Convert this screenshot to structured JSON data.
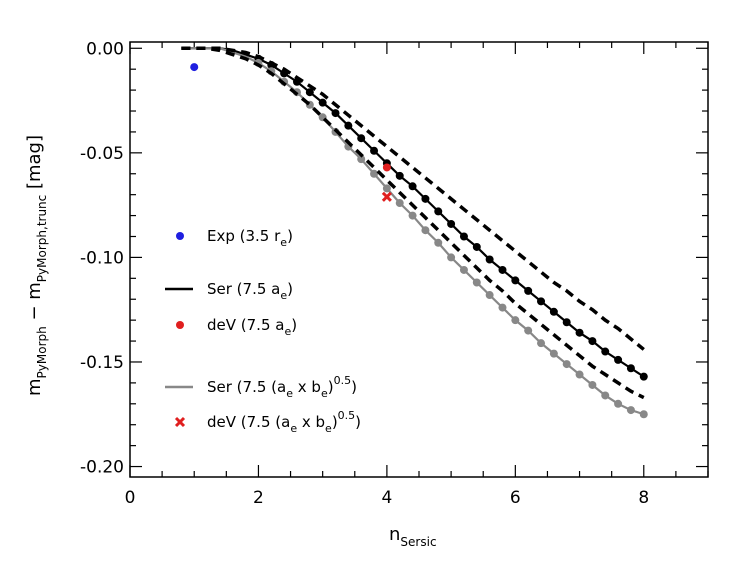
{
  "chart_data": {
    "type": "line",
    "title": "",
    "xlabel": {
      "base": "n",
      "sub": "Sersic"
    },
    "ylabel": {
      "base1": "m",
      "sub1": "PyMorph",
      "minus": " − ",
      "base2": "m",
      "sub2": "PyMorph,trunc",
      "unit": " [mag]"
    },
    "xlim": [
      0,
      9
    ],
    "ylim": [
      -0.205,
      0.003
    ],
    "xticks": [
      0,
      2,
      4,
      6,
      8
    ],
    "xtick_labels": [
      "0",
      "2",
      "4",
      "6",
      "8"
    ],
    "yticks": [
      0.0,
      -0.05,
      -0.1,
      -0.15,
      -0.2
    ],
    "ytick_labels": [
      "0.00",
      "-0.05",
      "-0.10",
      "-0.15",
      "-0.20"
    ],
    "grid": false,
    "legend_position": "left",
    "n_sersic": [
      0.8,
      1.0,
      1.2,
      1.4,
      1.6,
      1.8,
      2.0,
      2.2,
      2.4,
      2.6,
      2.8,
      3.0,
      3.2,
      3.4,
      3.6,
      3.8,
      4.0,
      4.2,
      4.4,
      4.6,
      4.8,
      5.0,
      5.2,
      5.4,
      5.6,
      5.8,
      6.0,
      6.2,
      6.4,
      6.6,
      6.8,
      7.0,
      7.2,
      7.4,
      7.6,
      7.8,
      8.0
    ],
    "series": [
      {
        "name": "Ser (7.5 a_e)",
        "color": "#000000",
        "style": "solid-with-points",
        "values": [
          0.0,
          0.0,
          0.0,
          0.0,
          -0.001,
          -0.003,
          -0.005,
          -0.008,
          -0.012,
          -0.016,
          -0.021,
          -0.026,
          -0.031,
          -0.037,
          -0.043,
          -0.049,
          -0.055,
          -0.061,
          -0.066,
          -0.072,
          -0.078,
          -0.084,
          -0.09,
          -0.095,
          -0.101,
          -0.106,
          -0.111,
          -0.116,
          -0.121,
          -0.126,
          -0.131,
          -0.136,
          -0.14,
          -0.145,
          -0.149,
          -0.153,
          -0.157
        ]
      },
      {
        "name": "Ser (7.5 (a_e x b_e)^0.5)",
        "color": "#888888",
        "style": "solid-with-points",
        "values": [
          0.0,
          0.0,
          0.0,
          0.0,
          -0.002,
          -0.004,
          -0.007,
          -0.011,
          -0.016,
          -0.021,
          -0.027,
          -0.033,
          -0.04,
          -0.047,
          -0.053,
          -0.06,
          -0.067,
          -0.074,
          -0.08,
          -0.087,
          -0.093,
          -0.1,
          -0.106,
          -0.112,
          -0.118,
          -0.124,
          -0.13,
          -0.135,
          -0.141,
          -0.146,
          -0.151,
          -0.156,
          -0.161,
          -0.166,
          -0.17,
          -0.173,
          -0.175
        ]
      },
      {
        "name": "",
        "color": "#000000",
        "style": "dashed",
        "values": [
          0.0,
          0.0,
          0.0,
          0.0,
          -0.001,
          -0.002,
          -0.004,
          -0.007,
          -0.01,
          -0.014,
          -0.018,
          -0.022,
          -0.027,
          -0.032,
          -0.037,
          -0.042,
          -0.047,
          -0.052,
          -0.057,
          -0.062,
          -0.067,
          -0.072,
          -0.077,
          -0.082,
          -0.087,
          -0.092,
          -0.097,
          -0.102,
          -0.107,
          -0.112,
          -0.116,
          -0.121,
          -0.125,
          -0.13,
          -0.134,
          -0.139,
          -0.144
        ]
      },
      {
        "name": "",
        "color": "#000000",
        "style": "dashed",
        "values": [
          0.0,
          0.0,
          0.0,
          -0.001,
          -0.003,
          -0.005,
          -0.008,
          -0.012,
          -0.017,
          -0.022,
          -0.027,
          -0.033,
          -0.039,
          -0.045,
          -0.051,
          -0.057,
          -0.063,
          -0.069,
          -0.075,
          -0.081,
          -0.087,
          -0.093,
          -0.099,
          -0.105,
          -0.111,
          -0.116,
          -0.122,
          -0.127,
          -0.132,
          -0.137,
          -0.142,
          -0.147,
          -0.152,
          -0.156,
          -0.16,
          -0.164,
          -0.167
        ]
      }
    ],
    "markers": [
      {
        "name": "Exp (3.5 r_e)",
        "color": "#1f1fe0",
        "shape": "circle",
        "x": 1.0,
        "y": -0.009
      },
      {
        "name": "deV (7.5 a_e)",
        "color": "#e01f1f",
        "shape": "circle",
        "x": 4.0,
        "y": -0.057
      },
      {
        "name": "deV (7.5 (a_e x b_e)^0.5)",
        "color": "#e01f1f",
        "shape": "x",
        "x": 4.0,
        "y": -0.071
      }
    ],
    "legend": [
      {
        "kind": "marker",
        "color": "#1f1fe0",
        "shape": "circle",
        "label": "Exp (3.5 r",
        "sub": "e",
        "tail": ")"
      },
      {
        "kind": "line",
        "color": "#000000",
        "label": "Ser (7.5 a",
        "sub": "e",
        "tail": ")"
      },
      {
        "kind": "marker",
        "color": "#e01f1f",
        "shape": "circle",
        "label": "deV (7.5 a",
        "sub": "e",
        "tail": ")"
      },
      {
        "kind": "line",
        "color": "#888888",
        "label": "Ser (7.5 (a",
        "sub": "e",
        "mid": " x b",
        "sub2": "e",
        "tail": ")",
        "sup": "0.5",
        "end": ")"
      },
      {
        "kind": "marker",
        "color": "#e01f1f",
        "shape": "x",
        "label": "deV (7.5 (a",
        "sub": "e",
        "mid": " x b",
        "sub2": "e",
        "tail": ")",
        "sup": "0.5",
        "end": ")"
      }
    ]
  }
}
